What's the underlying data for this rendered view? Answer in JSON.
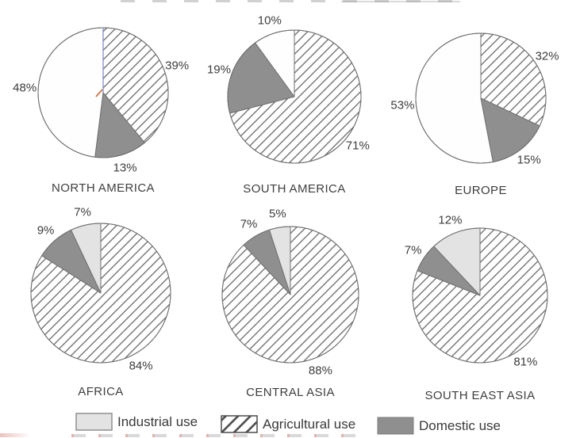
{
  "legend": {
    "items": [
      {
        "label": "Industrial use",
        "fill": "light"
      },
      {
        "label": "Agricultural use",
        "fill": "hatch"
      },
      {
        "label": "Domestic use",
        "fill": "domestic"
      }
    ]
  },
  "colors": {
    "industrial_top": "#fefefe",
    "industrial_bottom": "#e3e3e3",
    "domestic": "#8f8f8f",
    "hatch_line": "#686868",
    "outline": "#6f6f6f",
    "label_text": "#3d3d3d"
  },
  "chart_data": [
    {
      "type": "pie",
      "title": "NORTH AMERICA",
      "units": "percent",
      "start": "top",
      "direction": "clockwise",
      "slices": [
        {
          "label": "Agricultural use",
          "value": 39,
          "display": "39%",
          "fill": "hatch"
        },
        {
          "label": "Domestic use",
          "value": 13,
          "display": "13%",
          "fill": "domestic"
        },
        {
          "label": "Industrial use",
          "value": 48,
          "display": "48%",
          "fill": "white"
        }
      ]
    },
    {
      "type": "pie",
      "title": "SOUTH AMERICA",
      "units": "percent",
      "start": "top",
      "direction": "clockwise",
      "slices": [
        {
          "label": "Agricultural use",
          "value": 71,
          "display": "71%",
          "fill": "hatch"
        },
        {
          "label": "Domestic use",
          "value": 19,
          "display": "19%",
          "fill": "domestic"
        },
        {
          "label": "Industrial use",
          "value": 10,
          "display": "10%",
          "fill": "white"
        }
      ]
    },
    {
      "type": "pie",
      "title": "EUROPE",
      "units": "percent",
      "start": "top",
      "direction": "clockwise",
      "slices": [
        {
          "label": "Agricultural use",
          "value": 32,
          "display": "32%",
          "fill": "hatch"
        },
        {
          "label": "Domestic use",
          "value": 15,
          "display": "15%",
          "fill": "domestic"
        },
        {
          "label": "Industrial use",
          "value": 53,
          "display": "53%",
          "fill": "white"
        }
      ]
    },
    {
      "type": "pie",
      "title": "AFRICA",
      "units": "percent",
      "start": "top",
      "direction": "clockwise",
      "slices": [
        {
          "label": "Agricultural use",
          "value": 84,
          "display": "84%",
          "fill": "hatch"
        },
        {
          "label": "Domestic use",
          "value": 9,
          "display": "9%",
          "fill": "domestic"
        },
        {
          "label": "Industrial use",
          "value": 7,
          "display": "7%",
          "fill": "light"
        }
      ]
    },
    {
      "type": "pie",
      "title": "CENTRAL ASIA",
      "units": "percent",
      "start": "top",
      "direction": "clockwise",
      "slices": [
        {
          "label": "Agricultural use",
          "value": 88,
          "display": "88%",
          "fill": "hatch"
        },
        {
          "label": "Domestic use",
          "value": 7,
          "display": "7%",
          "fill": "domestic"
        },
        {
          "label": "Industrial use",
          "value": 5,
          "display": "5%",
          "fill": "light"
        }
      ]
    },
    {
      "type": "pie",
      "title": "SOUTH EAST ASIA",
      "units": "percent",
      "start": "top",
      "direction": "clockwise",
      "slices": [
        {
          "label": "Agricultural use",
          "value": 81,
          "display": "81%",
          "fill": "hatch"
        },
        {
          "label": "Domestic use",
          "value": 7,
          "display": "7%",
          "fill": "domestic"
        },
        {
          "label": "Industrial use",
          "value": 12,
          "display": "12%",
          "fill": "light"
        }
      ]
    }
  ]
}
